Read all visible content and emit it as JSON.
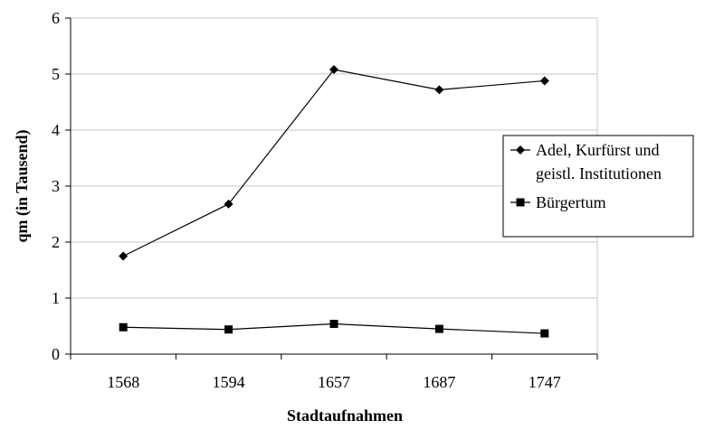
{
  "chart_data": {
    "type": "line",
    "title": "",
    "xlabel": "Stadtaufnahmen",
    "ylabel": "qm (in Tausend)",
    "categories": [
      "1568",
      "1594",
      "1657",
      "1687",
      "1747"
    ],
    "ylim": [
      0,
      6
    ],
    "yticks": [
      "0",
      "1",
      "2",
      "3",
      "4",
      "5",
      "6"
    ],
    "grid": true,
    "legend_position": "right",
    "series": [
      {
        "name": "Adel, Kurfürst und geistl. Institutionen",
        "name_lines": [
          "Adel, Kurfürst und",
          "geistl. Institutionen"
        ],
        "marker": "diamond",
        "color": "#000000",
        "values": [
          1.75,
          2.68,
          5.08,
          4.72,
          4.88
        ]
      },
      {
        "name": "Bürgertum",
        "name_lines": [
          "Bürgertum"
        ],
        "marker": "square",
        "color": "#000000",
        "values": [
          0.48,
          0.44,
          0.54,
          0.45,
          0.37
        ]
      }
    ]
  }
}
